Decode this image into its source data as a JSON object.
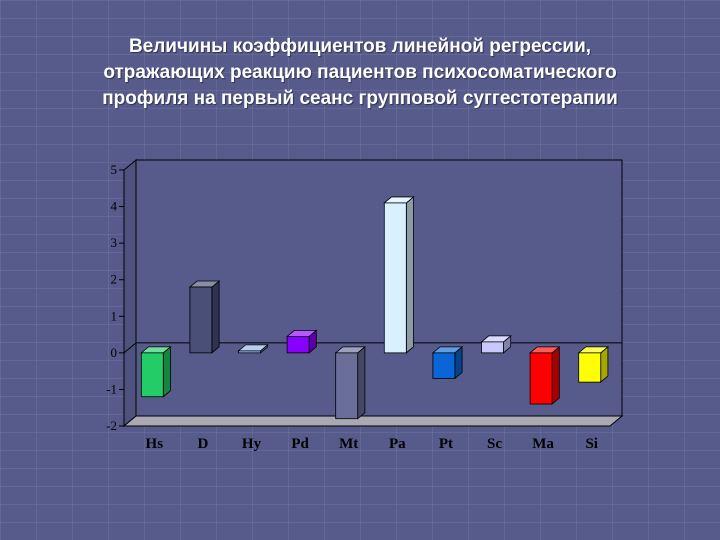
{
  "slide": {
    "title_lines": [
      "Величины коэффициентов линейной регрессии,",
      "отражающих реакцию пациентов психосоматического",
      "профиля  на первый сеанс групповой суггестотерапии"
    ]
  },
  "chart_data": {
    "type": "bar",
    "style": "3d",
    "categories": [
      "Hs",
      "D",
      "Hy",
      "Pd",
      "Mt",
      "Pa",
      "Pt",
      "Sc",
      "Ma",
      "Si"
    ],
    "values": [
      -1.2,
      1.8,
      0.05,
      0.45,
      -1.8,
      4.1,
      -0.7,
      0.3,
      -1.4,
      -0.8
    ],
    "colors": [
      "#22cc66",
      "#4a4f78",
      "#8fb3e8",
      "#8800ff",
      "#6a6f9a",
      "#d8f0ff",
      "#0a66d6",
      "#c8c8ff",
      "#ff0000",
      "#ffff00"
    ],
    "yticks": [
      "-2",
      "-1",
      "0",
      "1",
      "2",
      "3",
      "4",
      "5"
    ],
    "ylim": [
      -2,
      5
    ],
    "grid": false,
    "legend": "none",
    "plot_background": "#575b8c",
    "floor_color": "#a9a9b3",
    "title": "",
    "xlabel": "",
    "ylabel": ""
  }
}
